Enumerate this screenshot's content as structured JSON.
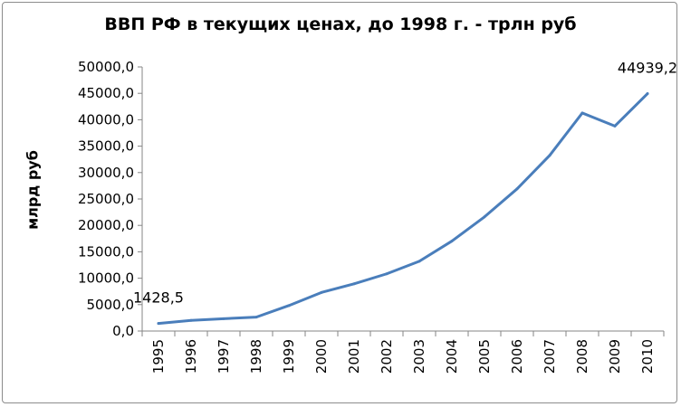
{
  "chart_data": {
    "type": "line",
    "title": "ВВП РФ в текущих ценах, до 1998 г. - трлн руб",
    "xlabel": "",
    "ylabel": "млрд руб",
    "categories": [
      "1995",
      "1996",
      "1997",
      "1998",
      "1999",
      "2000",
      "2001",
      "2002",
      "2003",
      "2004",
      "2005",
      "2006",
      "2007",
      "2008",
      "2009",
      "2010"
    ],
    "series": [
      {
        "values": [
          1428.5,
          2007.8,
          2342.5,
          2629.6,
          4823.2,
          7305.6,
          8943.6,
          10830.5,
          13208.2,
          17027.2,
          21609.8,
          26917.2,
          33247.5,
          41276.8,
          38807.2,
          44939.2
        ]
      }
    ],
    "ylim": [
      0,
      50000
    ],
    "y_ticks": [
      "0,0",
      "5000,0",
      "10000,0",
      "15000,0",
      "20000,0",
      "25000,0",
      "30000,0",
      "35000,0",
      "40000,0",
      "45000,0",
      "50000,0"
    ],
    "data_labels": [
      {
        "index": 0,
        "text": "1428,5"
      },
      {
        "index": 15,
        "text": "44939,2"
      }
    ],
    "grid": false,
    "legend": "none",
    "colors": {
      "line": "#4a7ebb",
      "axis": "#868686",
      "frame": "#8c8c8c"
    }
  }
}
